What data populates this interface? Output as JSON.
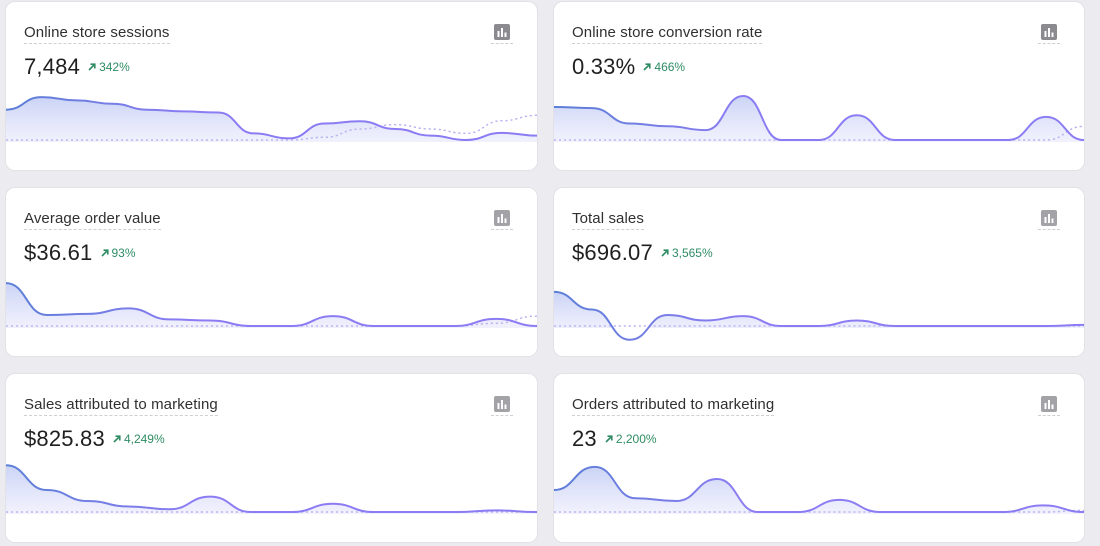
{
  "colors": {
    "accent": "#8b7cf3",
    "accent_dark": "#5c7fd6",
    "positive": "#2e8c63",
    "comparison_line": "#b9b2f0"
  },
  "icons": {
    "chart_button": "bar-chart-icon",
    "trend": "arrow-up-right-icon"
  },
  "cards": [
    {
      "title": "Online store sessions",
      "value": "7,484",
      "change": "342%",
      "change_direction": "up",
      "trend": [
        0.55,
        0.78,
        0.72,
        0.66,
        0.55,
        0.52,
        0.5,
        0.12,
        0.03,
        0.3,
        0.34,
        0.2,
        0.08,
        0.0,
        0.13,
        0.08
      ],
      "comparison": [
        0.0,
        0.0,
        0.0,
        0.0,
        0.0,
        0.0,
        0.0,
        0.0,
        0.0,
        0.05,
        0.2,
        0.28,
        0.2,
        0.12,
        0.35,
        0.45
      ]
    },
    {
      "title": "Online store conversion rate",
      "value": "0.33%",
      "change": "466%",
      "change_direction": "up",
      "trend": [
        0.6,
        0.58,
        0.3,
        0.25,
        0.18,
        0.8,
        0.0,
        0.0,
        0.45,
        0.0,
        0.0,
        0.0,
        0.0,
        0.42,
        0.0
      ],
      "comparison": [
        0.0,
        0.0,
        0.0,
        0.0,
        0.0,
        0.0,
        0.0,
        0.0,
        0.0,
        0.0,
        0.0,
        0.0,
        0.0,
        0.0,
        0.25
      ]
    },
    {
      "title": "Average order value",
      "value": "$36.61",
      "change": "93%",
      "change_direction": "up",
      "trend": [
        0.78,
        0.2,
        0.22,
        0.32,
        0.12,
        0.1,
        0.0,
        0.0,
        0.18,
        0.0,
        0.0,
        0.0,
        0.13,
        0.0
      ],
      "comparison": [
        0.0,
        0.0,
        0.0,
        0.0,
        0.0,
        0.0,
        0.0,
        0.0,
        0.0,
        0.0,
        0.0,
        0.0,
        0.05,
        0.18
      ]
    },
    {
      "title": "Total sales",
      "value": "$696.07",
      "change": "3,565%",
      "change_direction": "up",
      "trend": [
        0.62,
        0.3,
        -0.25,
        0.2,
        0.1,
        0.18,
        0.0,
        0.0,
        0.1,
        0.0,
        0.0,
        0.0,
        0.0,
        0.0,
        0.02
      ],
      "comparison": [
        0.0,
        0.0,
        0.0,
        0.0,
        0.0,
        0.0,
        0.0,
        0.0,
        0.0,
        0.0,
        0.0,
        0.0,
        0.0,
        0.0,
        0.0
      ]
    },
    {
      "title": "Sales attributed to marketing",
      "value": "$825.83",
      "change": "4,249%",
      "change_direction": "up",
      "trend": [
        0.85,
        0.4,
        0.2,
        0.1,
        0.05,
        0.28,
        0.0,
        0.0,
        0.15,
        0.0,
        0.0,
        0.0,
        0.03,
        0.0
      ],
      "comparison": [
        0.0,
        0.0,
        0.0,
        0.0,
        0.0,
        0.0,
        0.0,
        0.0,
        0.0,
        0.0,
        0.0,
        0.0,
        0.0,
        0.0
      ]
    },
    {
      "title": "Orders attributed to marketing",
      "value": "23",
      "change": "2,200%",
      "change_direction": "up",
      "trend": [
        0.4,
        0.82,
        0.25,
        0.2,
        0.6,
        0.0,
        0.0,
        0.22,
        0.0,
        0.0,
        0.0,
        0.0,
        0.12,
        0.0
      ],
      "comparison": [
        0.0,
        0.0,
        0.0,
        0.0,
        0.0,
        0.0,
        0.0,
        0.0,
        0.0,
        0.0,
        0.0,
        0.0,
        0.0,
        0.03
      ]
    }
  ]
}
